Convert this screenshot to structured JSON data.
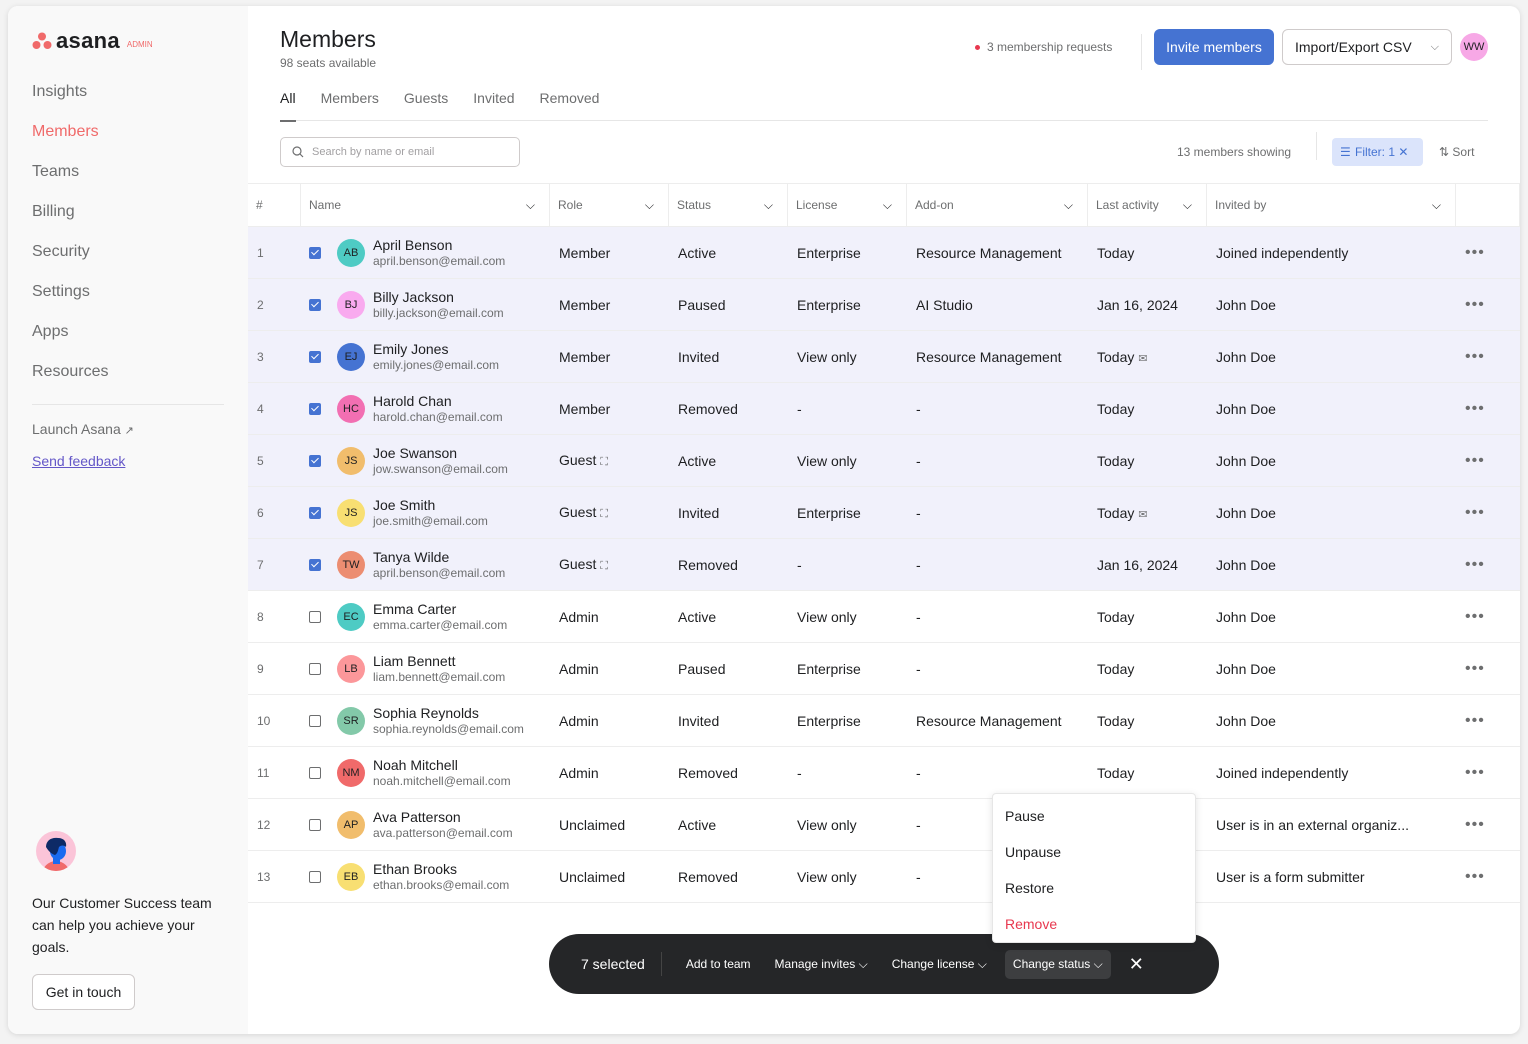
{
  "brand": {
    "name": "asana",
    "badge": "ADMIN",
    "color": "#f06a6a"
  },
  "sidebar": {
    "items": [
      {
        "label": "Insights"
      },
      {
        "label": "Members",
        "active": true
      },
      {
        "label": "Teams"
      },
      {
        "label": "Billing"
      },
      {
        "label": "Security"
      },
      {
        "label": "Settings"
      },
      {
        "label": "Apps"
      },
      {
        "label": "Resources"
      }
    ],
    "launch": "Launch Asana",
    "feedback": "Send feedback",
    "cs_text": "Our Customer Success team can help you achieve your goals.",
    "cs_button": "Get in touch"
  },
  "header": {
    "title": "Members",
    "seats": "98 seats available",
    "requests": "3 membership requests",
    "invite": "Invite members",
    "csv": "Import/Export CSV",
    "user_initials": "WW"
  },
  "tabs": [
    {
      "label": "All",
      "active": true
    },
    {
      "label": "Members"
    },
    {
      "label": "Guests"
    },
    {
      "label": "Invited"
    },
    {
      "label": "Removed"
    }
  ],
  "toolbar": {
    "search_placeholder": "Search by name or email",
    "showing": "13 members showing",
    "filter": "Filter: 1",
    "sort": "Sort"
  },
  "columns": [
    "#",
    "Name",
    "Role",
    "Status",
    "License",
    "Add-on",
    "Last activity",
    "Invited by"
  ],
  "rows": [
    {
      "n": "1",
      "sel": true,
      "ini": "AB",
      "color": "#4ecbc4",
      "name": "April Benson",
      "email": "april.benson@email.com",
      "role": "Member",
      "status": "Active",
      "license": "Enterprise",
      "addon": "Resource Management",
      "activity": "Today",
      "invited": "Joined independently"
    },
    {
      "n": "2",
      "sel": true,
      "ini": "BJ",
      "color": "#f9aaef",
      "name": "Billy Jackson",
      "email": "billy.jackson@email.com",
      "role": "Member",
      "status": "Paused",
      "license": "Enterprise",
      "addon": "AI Studio",
      "activity": "Jan 16, 2024",
      "invited": "John Doe"
    },
    {
      "n": "3",
      "sel": true,
      "ini": "EJ",
      "color": "#4573d2",
      "name": "Emily Jones",
      "email": "emily.jones@email.com",
      "role": "Member",
      "status": "Invited",
      "license": "View only",
      "addon": "Resource Management",
      "activity": "Today",
      "mail": true,
      "invited": "John Doe"
    },
    {
      "n": "4",
      "sel": true,
      "ini": "HC",
      "color": "#f26fb2",
      "name": "Harold Chan",
      "email": "harold.chan@email.com",
      "role": "Member",
      "status": "Removed",
      "license": "-",
      "addon": "-",
      "activity": "Today",
      "invited": "John Doe"
    },
    {
      "n": "5",
      "sel": true,
      "ini": "JS",
      "color": "#f1bd6c",
      "name": "Joe Swanson",
      "email": "jow.swanson@email.com",
      "role": "Guest",
      "guest": true,
      "status": "Active",
      "license": "View only",
      "addon": "-",
      "activity": "Today",
      "invited": "John Doe"
    },
    {
      "n": "6",
      "sel": true,
      "ini": "JS",
      "color": "#f8df72",
      "name": "Joe Smith",
      "email": "joe.smith@email.com",
      "role": "Guest",
      "guest": true,
      "status": "Invited",
      "license": "Enterprise",
      "addon": "-",
      "activity": "Today",
      "mail": true,
      "invited": "John Doe"
    },
    {
      "n": "7",
      "sel": true,
      "ini": "TW",
      "color": "#ec8d71",
      "name": "Tanya Wilde",
      "email": "april.benson@email.com",
      "role": "Guest",
      "guest": true,
      "status": "Removed",
      "license": "-",
      "addon": "-",
      "activity": "Jan 16, 2024",
      "invited": "John Doe"
    },
    {
      "n": "8",
      "sel": false,
      "ini": "EC",
      "color": "#4ecbc4",
      "name": "Emma Carter",
      "email": "emma.carter@email.com",
      "role": "Admin",
      "status": "Active",
      "license": "View only",
      "addon": "-",
      "activity": "Today",
      "invited": "John Doe"
    },
    {
      "n": "9",
      "sel": false,
      "ini": "LB",
      "color": "#fc979a",
      "name": "Liam Bennett",
      "email": "liam.bennett@email.com",
      "role": "Admin",
      "status": "Paused",
      "license": "Enterprise",
      "addon": "-",
      "activity": "Today",
      "invited": "John Doe"
    },
    {
      "n": "10",
      "sel": false,
      "ini": "SR",
      "color": "#83c9a9",
      "name": "Sophia Reynolds",
      "email": "sophia.reynolds@email.com",
      "role": "Admin",
      "status": "Invited",
      "license": "Enterprise",
      "addon": "Resource Management",
      "activity": "Today",
      "invited": "John Doe"
    },
    {
      "n": "11",
      "sel": false,
      "ini": "NM",
      "color": "#f06a6a",
      "name": "Noah Mitchell",
      "email": "noah.mitchell@email.com",
      "role": "Admin",
      "status": "Removed",
      "license": "-",
      "addon": "-",
      "activity": "Today",
      "invited": "Joined independently"
    },
    {
      "n": "12",
      "sel": false,
      "ini": "AP",
      "color": "#f1bd6c",
      "name": "Ava Patterson",
      "email": "ava.patterson@email.com",
      "role": "Unclaimed",
      "status": "Active",
      "license": "View only",
      "addon": "-",
      "activity": "",
      "invited": "User is in an external organiz..."
    },
    {
      "n": "13",
      "sel": false,
      "ini": "EB",
      "color": "#f8df72",
      "name": "Ethan Brooks",
      "email": "ethan.brooks@email.com",
      "role": "Unclaimed",
      "status": "Removed",
      "license": "View only",
      "addon": "-",
      "activity": "",
      "invited": "User is a form submitter"
    }
  ],
  "status_menu": [
    "Pause",
    "Unpause",
    "Restore",
    "Remove"
  ],
  "bulk": {
    "selected": "7 selected",
    "add_team": "Add to team",
    "manage_invites": "Manage invites",
    "change_license": "Change license",
    "change_status": "Change status"
  }
}
